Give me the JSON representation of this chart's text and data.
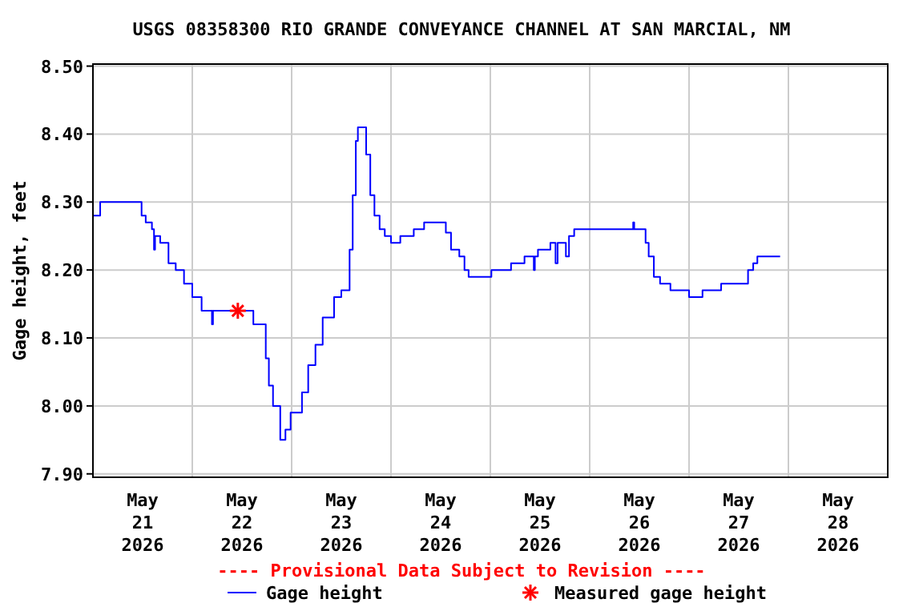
{
  "chart_data": {
    "type": "step",
    "title": "USGS 08358300 RIO GRANDE CONVEYANCE CHANNEL AT SAN MARCIAL, NM",
    "ylabel": "Gage height, feet",
    "annotations": [
      "---- Provisional Data Subject to Revision ----"
    ],
    "xlim": [
      "2026-05-21T00:00",
      "2026-05-29T00:00"
    ],
    "xticks": [
      {
        "value": "2026-05-21T00:00",
        "label": null
      },
      {
        "value": "2026-05-21T12:00",
        "label": "May\n21\n2026"
      },
      {
        "value": "2026-05-22T00:00",
        "label": null
      },
      {
        "value": "2026-05-22T12:00",
        "label": "May\n22\n2026"
      },
      {
        "value": "2026-05-23T00:00",
        "label": null
      },
      {
        "value": "2026-05-23T12:00",
        "label": "May\n23\n2026"
      },
      {
        "value": "2026-05-24T00:00",
        "label": null
      },
      {
        "value": "2026-05-24T12:00",
        "label": "May\n24\n2026"
      },
      {
        "value": "2026-05-25T00:00",
        "label": null
      },
      {
        "value": "2026-05-25T12:00",
        "label": "May\n25\n2026"
      },
      {
        "value": "2026-05-26T00:00",
        "label": null
      },
      {
        "value": "2026-05-26T12:00",
        "label": "May\n26\n2026"
      },
      {
        "value": "2026-05-27T00:00",
        "label": null
      },
      {
        "value": "2026-05-27T12:00",
        "label": "May\n27\n2026"
      },
      {
        "value": "2026-05-28T00:00",
        "label": null
      },
      {
        "value": "2026-05-28T12:00",
        "label": "May\n28\n2026"
      },
      {
        "value": "2026-05-29T00:00",
        "label": null
      }
    ],
    "ylim": [
      7.895,
      8.503
    ],
    "yticks": [
      {
        "value": 7.9,
        "label": "7.90"
      },
      {
        "value": 8.0,
        "label": "8.00"
      },
      {
        "value": 8.1,
        "label": "8.10"
      },
      {
        "value": 8.2,
        "label": "8.20"
      },
      {
        "value": 8.3,
        "label": "8.30"
      },
      {
        "value": 8.4,
        "label": "8.40"
      },
      {
        "value": 8.5,
        "label": "8.50"
      }
    ],
    "grid": true,
    "legend": "bottom",
    "line_style": "solid",
    "series": [
      {
        "name": "Gage height",
        "color": "#0000ff",
        "marker": "none",
        "x": [
          "2026-05-21T00:00",
          "2026-05-21T01:45",
          "2026-05-21T10:30",
          "2026-05-21T11:45",
          "2026-05-21T12:45",
          "2026-05-21T14:15",
          "2026-05-21T14:45",
          "2026-05-21T15:00",
          "2026-05-21T16:15",
          "2026-05-21T18:15",
          "2026-05-21T20:00",
          "2026-05-21T22:00",
          "2026-05-22T00:00",
          "2026-05-22T02:15",
          "2026-05-22T04:30",
          "2026-05-22T04:45",
          "2026-05-22T05:00",
          "2026-05-22T13:15",
          "2026-05-22T14:45",
          "2026-05-22T16:30",
          "2026-05-22T17:45",
          "2026-05-22T18:30",
          "2026-05-22T19:30",
          "2026-05-22T21:15",
          "2026-05-22T22:30",
          "2026-05-22T23:45",
          "2026-05-23T01:45",
          "2026-05-23T02:30",
          "2026-05-23T04:00",
          "2026-05-23T05:45",
          "2026-05-23T07:30",
          "2026-05-23T10:15",
          "2026-05-23T12:00",
          "2026-05-23T13:30",
          "2026-05-23T14:00",
          "2026-05-23T14:45",
          "2026-05-23T15:30",
          "2026-05-23T16:00",
          "2026-05-23T17:00",
          "2026-05-23T18:00",
          "2026-05-23T19:00",
          "2026-05-23T20:00",
          "2026-05-23T21:15",
          "2026-05-23T22:30",
          "2026-05-24T00:00",
          "2026-05-24T02:15",
          "2026-05-24T05:30",
          "2026-05-24T08:00",
          "2026-05-24T11:15",
          "2026-05-24T13:15",
          "2026-05-24T14:30",
          "2026-05-24T16:30",
          "2026-05-24T17:45",
          "2026-05-24T18:45",
          "2026-05-24T23:30",
          "2026-05-25T00:15",
          "2026-05-25T04:45",
          "2026-05-25T05:00",
          "2026-05-25T08:00",
          "2026-05-25T08:15",
          "2026-05-25T10:15",
          "2026-05-25T10:30",
          "2026-05-25T10:45",
          "2026-05-25T11:30",
          "2026-05-25T14:30",
          "2026-05-25T15:45",
          "2026-05-25T16:15",
          "2026-05-25T18:15",
          "2026-05-25T19:00",
          "2026-05-25T20:15",
          "2026-05-26T10:30",
          "2026-05-26T10:45",
          "2026-05-26T12:30",
          "2026-05-26T13:30",
          "2026-05-26T14:15",
          "2026-05-26T15:30",
          "2026-05-26T17:00",
          "2026-05-26T19:30",
          "2026-05-26T23:15",
          "2026-05-27T00:00",
          "2026-05-27T02:45",
          "2026-05-27T03:15",
          "2026-05-27T07:00",
          "2026-05-27T07:45",
          "2026-05-27T13:15",
          "2026-05-27T14:15",
          "2026-05-27T15:30",
          "2026-05-27T16:30",
          "2026-05-27T22:00"
        ],
        "values": [
          8.28,
          8.3,
          8.3,
          8.28,
          8.27,
          8.26,
          8.23,
          8.25,
          8.24,
          8.21,
          8.2,
          8.18,
          8.16,
          8.14,
          8.14,
          8.12,
          8.14,
          8.14,
          8.12,
          8.12,
          8.07,
          8.03,
          8.0,
          7.95,
          7.965,
          7.99,
          7.99,
          8.02,
          8.06,
          8.09,
          8.13,
          8.16,
          8.17,
          8.17,
          8.23,
          8.31,
          8.39,
          8.41,
          8.41,
          8.37,
          8.31,
          8.28,
          8.26,
          8.25,
          8.24,
          8.25,
          8.26,
          8.27,
          8.27,
          8.255,
          8.23,
          8.22,
          8.2,
          8.19,
          8.19,
          8.2,
          8.2,
          8.21,
          8.21,
          8.22,
          8.22,
          8.2,
          8.22,
          8.23,
          8.24,
          8.21,
          8.24,
          8.22,
          8.25,
          8.26,
          8.27,
          8.26,
          8.26,
          8.24,
          8.22,
          8.19,
          8.18,
          8.17,
          8.17,
          8.16,
          8.16,
          8.17,
          8.17,
          8.18,
          8.18,
          8.2,
          8.21,
          8.22,
          8.22
        ]
      },
      {
        "name": "Measured gage height",
        "type": "scatter",
        "color": "#ff0000",
        "marker": "cross",
        "x": [
          "2026-05-22T11:00"
        ],
        "values": [
          8.14
        ]
      }
    ]
  }
}
